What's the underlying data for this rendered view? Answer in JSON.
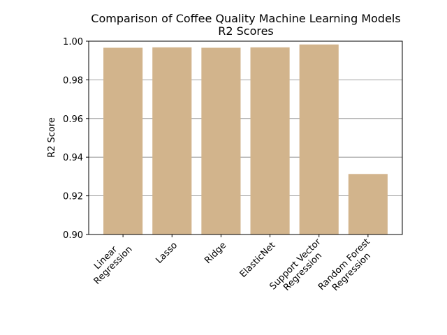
{
  "chart_data": {
    "type": "bar",
    "title_line1": "Comparison of Coffee Quality Machine Learning Models",
    "title_line2": "R2 Scores",
    "xlabel": "",
    "ylabel": "R2 Score",
    "ylim": [
      0.9,
      1.0
    ],
    "yticks": [
      "0.90",
      "0.92",
      "0.94",
      "0.96",
      "0.98",
      "1.00"
    ],
    "grid": "horizontal",
    "bar_color": "#d2b48c",
    "categories": [
      [
        "Linear",
        "Regression"
      ],
      [
        "Lasso"
      ],
      [
        "Ridge"
      ],
      [
        "ElasticNet"
      ],
      [
        "Support Vector",
        "Regression"
      ],
      [
        "Random Forest",
        "Regression"
      ]
    ],
    "values": [
      0.9966,
      0.9968,
      0.9966,
      0.9968,
      0.9983,
      0.9313
    ]
  }
}
